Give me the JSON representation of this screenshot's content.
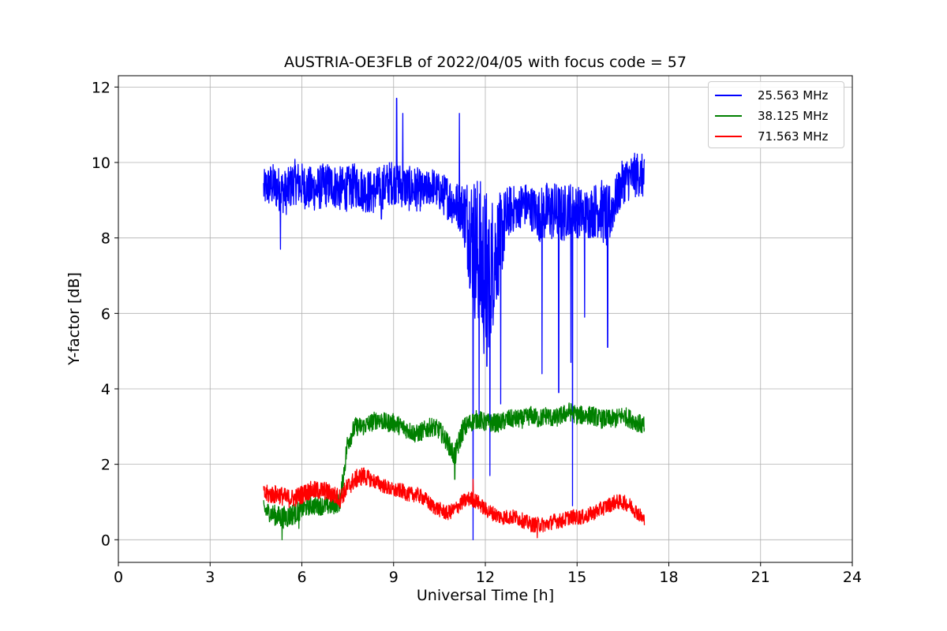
{
  "chart_data": {
    "type": "line",
    "title": "AUSTRIA-OE3FLB of 2022/04/05 with focus code = 57",
    "xlabel": "Universal Time [h]",
    "ylabel": "Y-factor [dB]",
    "xlim": [
      0,
      24
    ],
    "ylim": [
      -0.6,
      12.3
    ],
    "xticks": [
      "0",
      "3",
      "6",
      "9",
      "12",
      "15",
      "18",
      "21",
      "24"
    ],
    "yticks": [
      "0",
      "2",
      "4",
      "6",
      "8",
      "10",
      "12"
    ],
    "grid": true,
    "legend_position": "top-right",
    "series": [
      {
        "name": "25.563 MHz",
        "color": "#0000ff",
        "x": [
          4.75,
          5.0,
          5.25,
          5.5,
          5.75,
          6.0,
          6.25,
          6.5,
          6.75,
          7.0,
          7.25,
          7.5,
          7.75,
          8.0,
          8.25,
          8.5,
          8.75,
          9.0,
          9.25,
          9.5,
          9.75,
          10.0,
          10.25,
          10.5,
          10.75,
          11.0,
          11.25,
          11.5,
          11.75,
          12.0,
          12.25,
          12.5,
          12.75,
          13.0,
          13.25,
          13.5,
          13.75,
          14.0,
          14.25,
          14.5,
          14.75,
          15.0,
          15.25,
          15.5,
          15.75,
          16.0,
          16.25,
          16.5,
          16.75,
          17.0,
          17.2
        ],
        "y": [
          9.3,
          9.4,
          9.3,
          9.2,
          9.5,
          9.4,
          9.3,
          9.3,
          9.4,
          9.4,
          9.3,
          9.3,
          9.4,
          9.3,
          9.2,
          9.3,
          9.4,
          9.5,
          9.4,
          9.3,
          9.3,
          9.2,
          9.4,
          9.2,
          9.1,
          8.9,
          8.8,
          8.2,
          7.5,
          7.0,
          7.4,
          8.0,
          8.7,
          8.8,
          8.9,
          8.8,
          8.6,
          8.7,
          8.7,
          8.6,
          8.8,
          8.7,
          8.6,
          8.7,
          8.8,
          8.5,
          9.0,
          9.5,
          9.6,
          9.7,
          9.6
        ],
        "band": [
          0.5,
          0.6,
          0.6,
          0.6,
          0.6,
          0.6,
          0.6,
          0.6,
          0.6,
          0.6,
          0.6,
          0.6,
          0.6,
          0.6,
          0.6,
          0.6,
          0.6,
          0.6,
          0.6,
          0.6,
          0.6,
          0.5,
          0.5,
          0.5,
          0.6,
          0.6,
          0.7,
          1.6,
          2.2,
          2.4,
          1.8,
          1.2,
          0.7,
          0.6,
          0.6,
          0.6,
          0.7,
          0.8,
          0.8,
          0.8,
          0.7,
          0.7,
          0.7,
          0.7,
          0.8,
          0.9,
          0.6,
          0.6,
          0.6,
          0.6,
          0.6
        ],
        "spikes": [
          [
            5.3,
            7.7
          ],
          [
            8.6,
            8.5
          ],
          [
            9.1,
            11.7
          ],
          [
            9.3,
            11.3
          ],
          [
            11.15,
            11.3
          ],
          [
            11.6,
            0.0
          ],
          [
            11.8,
            3.1
          ],
          [
            12.05,
            4.6
          ],
          [
            12.15,
            1.7
          ],
          [
            12.5,
            3.6
          ],
          [
            12.7,
            8.2
          ],
          [
            13.05,
            8.4
          ],
          [
            13.85,
            4.4
          ],
          [
            14.4,
            3.9
          ],
          [
            14.8,
            4.7
          ],
          [
            14.85,
            0.9
          ],
          [
            15.25,
            5.9
          ],
          [
            16.0,
            5.1
          ]
        ]
      },
      {
        "name": "38.125 MHz",
        "color": "#008000",
        "x": [
          4.75,
          5.0,
          5.25,
          5.5,
          5.75,
          6.0,
          6.25,
          6.5,
          6.75,
          7.0,
          7.25,
          7.5,
          7.75,
          8.0,
          8.25,
          8.5,
          8.75,
          9.0,
          9.25,
          9.5,
          9.75,
          10.0,
          10.25,
          10.5,
          10.75,
          11.0,
          11.25,
          11.5,
          11.75,
          12.0,
          12.25,
          12.5,
          12.75,
          13.0,
          13.25,
          13.5,
          13.75,
          14.0,
          14.25,
          14.5,
          14.75,
          15.0,
          15.25,
          15.5,
          15.75,
          16.0,
          16.25,
          16.5,
          16.75,
          17.0,
          17.2
        ],
        "y": [
          0.8,
          0.7,
          0.6,
          0.6,
          0.7,
          0.8,
          0.9,
          0.9,
          0.9,
          0.9,
          1.0,
          2.6,
          3.0,
          3.0,
          3.1,
          3.2,
          3.1,
          3.1,
          3.0,
          2.9,
          2.8,
          2.9,
          3.0,
          2.9,
          2.6,
          2.2,
          2.9,
          3.1,
          3.2,
          3.1,
          3.1,
          3.1,
          3.2,
          3.2,
          3.2,
          3.3,
          3.2,
          3.3,
          3.2,
          3.3,
          3.4,
          3.3,
          3.3,
          3.3,
          3.2,
          3.2,
          3.2,
          3.3,
          3.2,
          3.1,
          3.0
        ],
        "band": [
          0.25,
          0.25,
          0.3,
          0.3,
          0.3,
          0.25,
          0.25,
          0.25,
          0.25,
          0.25,
          0.25,
          0.3,
          0.25,
          0.25,
          0.25,
          0.25,
          0.25,
          0.25,
          0.25,
          0.25,
          0.25,
          0.25,
          0.25,
          0.25,
          0.25,
          0.3,
          0.3,
          0.25,
          0.25,
          0.25,
          0.25,
          0.25,
          0.25,
          0.25,
          0.25,
          0.25,
          0.25,
          0.25,
          0.25,
          0.25,
          0.25,
          0.25,
          0.25,
          0.25,
          0.25,
          0.25,
          0.25,
          0.25,
          0.25,
          0.25,
          0.25
        ],
        "spikes": [
          [
            5.35,
            0.0
          ],
          [
            5.9,
            0.3
          ],
          [
            11.0,
            1.6
          ]
        ]
      },
      {
        "name": "71.563 MHz",
        "color": "#ff0000",
        "x": [
          4.75,
          5.0,
          5.25,
          5.5,
          5.75,
          6.0,
          6.25,
          6.5,
          6.75,
          7.0,
          7.25,
          7.5,
          7.75,
          8.0,
          8.25,
          8.5,
          8.75,
          9.0,
          9.25,
          9.5,
          9.75,
          10.0,
          10.25,
          10.5,
          10.75,
          11.0,
          11.25,
          11.5,
          11.75,
          12.0,
          12.25,
          12.5,
          12.75,
          13.0,
          13.25,
          13.5,
          13.75,
          14.0,
          14.25,
          14.5,
          14.75,
          15.0,
          15.25,
          15.5,
          15.75,
          16.0,
          16.25,
          16.5,
          16.75,
          17.0,
          17.2
        ],
        "y": [
          1.2,
          1.2,
          1.2,
          1.1,
          1.1,
          1.2,
          1.3,
          1.3,
          1.3,
          1.2,
          1.1,
          1.4,
          1.6,
          1.7,
          1.6,
          1.5,
          1.4,
          1.3,
          1.3,
          1.2,
          1.2,
          1.1,
          0.9,
          0.8,
          0.7,
          0.8,
          1.0,
          1.1,
          1.0,
          0.8,
          0.7,
          0.6,
          0.6,
          0.6,
          0.5,
          0.4,
          0.4,
          0.4,
          0.5,
          0.5,
          0.6,
          0.6,
          0.6,
          0.7,
          0.8,
          0.9,
          1.0,
          1.0,
          0.9,
          0.7,
          0.5
        ],
        "band": [
          0.25,
          0.25,
          0.25,
          0.25,
          0.25,
          0.25,
          0.25,
          0.25,
          0.25,
          0.25,
          0.25,
          0.25,
          0.25,
          0.25,
          0.2,
          0.2,
          0.2,
          0.2,
          0.2,
          0.2,
          0.2,
          0.2,
          0.2,
          0.2,
          0.2,
          0.2,
          0.2,
          0.2,
          0.2,
          0.2,
          0.2,
          0.2,
          0.2,
          0.2,
          0.2,
          0.2,
          0.2,
          0.2,
          0.2,
          0.2,
          0.2,
          0.2,
          0.2,
          0.2,
          0.2,
          0.2,
          0.2,
          0.2,
          0.2,
          0.2,
          0.2
        ],
        "spikes": [
          [
            13.7,
            0.05
          ],
          [
            11.6,
            1.6
          ]
        ]
      }
    ]
  }
}
